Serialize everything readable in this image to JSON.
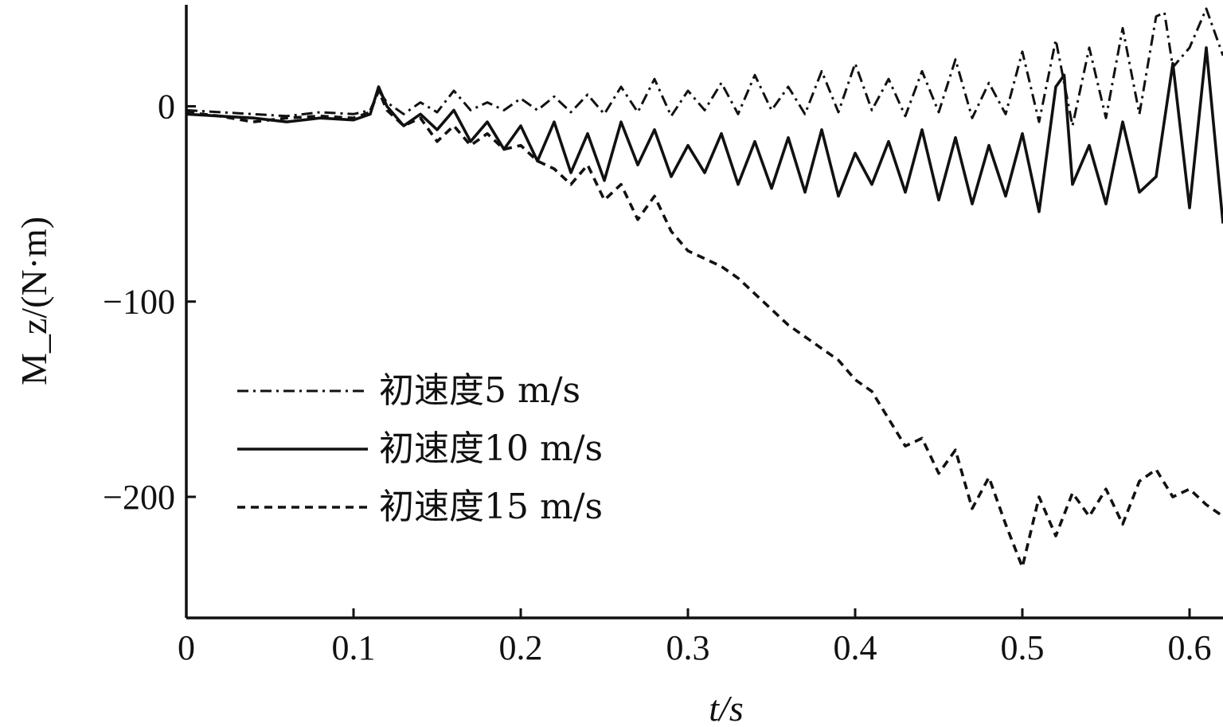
{
  "chart_data": {
    "type": "line",
    "xlabel": "t/s",
    "ylabel": "M_z/(N·m)",
    "xlim": [
      0,
      0.62
    ],
    "ylim": [
      -262,
      52
    ],
    "x_ticks": [
      0,
      0.1,
      0.2,
      0.3,
      0.4,
      0.5,
      0.6
    ],
    "x_tick_labels": [
      "0",
      "0.1",
      "0.2",
      "0.3",
      "0.4",
      "0.5",
      "0.6"
    ],
    "y_ticks": [
      0,
      -100,
      -200
    ],
    "y_tick_labels": [
      "0",
      "−100",
      "−200"
    ],
    "grid": false,
    "legend_position": "lower-left",
    "series": [
      {
        "name": "初速度5 m/s",
        "style": "dashdot",
        "x": [
          0,
          0.02,
          0.04,
          0.06,
          0.08,
          0.1,
          0.11,
          0.115,
          0.12,
          0.13,
          0.14,
          0.15,
          0.16,
          0.17,
          0.18,
          0.19,
          0.2,
          0.21,
          0.22,
          0.23,
          0.24,
          0.25,
          0.26,
          0.27,
          0.28,
          0.29,
          0.3,
          0.31,
          0.32,
          0.33,
          0.34,
          0.35,
          0.36,
          0.37,
          0.38,
          0.39,
          0.4,
          0.41,
          0.42,
          0.43,
          0.44,
          0.45,
          0.46,
          0.47,
          0.48,
          0.49,
          0.5,
          0.51,
          0.52,
          0.53,
          0.54,
          0.55,
          0.56,
          0.57,
          0.58,
          0.585,
          0.59,
          0.6,
          0.61,
          0.62
        ],
        "y": [
          -2,
          -3,
          -4,
          -5,
          -3,
          -4,
          -2,
          8,
          2,
          -4,
          2,
          -3,
          8,
          -2,
          2,
          -2,
          4,
          -2,
          5,
          -3,
          6,
          -4,
          10,
          -3,
          14,
          -5,
          8,
          -2,
          12,
          -4,
          16,
          -2,
          10,
          -4,
          18,
          -3,
          22,
          -2,
          14,
          -5,
          18,
          -3,
          24,
          -6,
          12,
          -4,
          28,
          -8,
          34,
          -10,
          30,
          -6,
          40,
          -4,
          46,
          48,
          20,
          30,
          50,
          26
        ]
      },
      {
        "name": "初速度10 m/s",
        "style": "solid",
        "x": [
          0,
          0.02,
          0.04,
          0.06,
          0.08,
          0.1,
          0.11,
          0.115,
          0.12,
          0.13,
          0.14,
          0.15,
          0.16,
          0.17,
          0.18,
          0.19,
          0.2,
          0.21,
          0.22,
          0.23,
          0.24,
          0.25,
          0.26,
          0.27,
          0.28,
          0.29,
          0.3,
          0.31,
          0.32,
          0.33,
          0.34,
          0.35,
          0.36,
          0.37,
          0.38,
          0.39,
          0.4,
          0.41,
          0.42,
          0.43,
          0.44,
          0.45,
          0.46,
          0.47,
          0.48,
          0.49,
          0.5,
          0.51,
          0.52,
          0.525,
          0.53,
          0.54,
          0.55,
          0.56,
          0.57,
          0.58,
          0.59,
          0.6,
          0.61,
          0.62
        ],
        "y": [
          -4,
          -5,
          -6,
          -8,
          -6,
          -7,
          -4,
          10,
          0,
          -10,
          -4,
          -12,
          -2,
          -18,
          -8,
          -22,
          -10,
          -28,
          -8,
          -34,
          -14,
          -38,
          -8,
          -30,
          -12,
          -36,
          -20,
          -34,
          -14,
          -40,
          -18,
          -42,
          -16,
          -44,
          -12,
          -46,
          -24,
          -40,
          -18,
          -44,
          -12,
          -48,
          -16,
          -50,
          -20,
          -46,
          -14,
          -54,
          10,
          16,
          -40,
          -20,
          -50,
          -8,
          -44,
          -36,
          22,
          -52,
          30,
          -60
        ]
      },
      {
        "name": "初速度15 m/s",
        "style": "dashed",
        "x": [
          0,
          0.02,
          0.04,
          0.06,
          0.08,
          0.1,
          0.11,
          0.115,
          0.12,
          0.13,
          0.14,
          0.15,
          0.16,
          0.17,
          0.18,
          0.19,
          0.2,
          0.21,
          0.22,
          0.23,
          0.24,
          0.25,
          0.26,
          0.27,
          0.28,
          0.29,
          0.3,
          0.31,
          0.32,
          0.33,
          0.34,
          0.35,
          0.36,
          0.37,
          0.38,
          0.39,
          0.4,
          0.41,
          0.42,
          0.43,
          0.44,
          0.45,
          0.46,
          0.47,
          0.48,
          0.49,
          0.5,
          0.51,
          0.52,
          0.53,
          0.54,
          0.55,
          0.56,
          0.57,
          0.58,
          0.59,
          0.6,
          0.61,
          0.62
        ],
        "y": [
          -3,
          -5,
          -8,
          -6,
          -5,
          -6,
          -3,
          8,
          -2,
          -10,
          -6,
          -18,
          -10,
          -20,
          -14,
          -22,
          -20,
          -28,
          -32,
          -40,
          -30,
          -48,
          -40,
          -58,
          -46,
          -64,
          -74,
          -78,
          -82,
          -88,
          -96,
          -104,
          -112,
          -118,
          -124,
          -130,
          -140,
          -146,
          -160,
          -174,
          -170,
          -188,
          -176,
          -206,
          -190,
          -214,
          -236,
          -200,
          -220,
          -198,
          -210,
          -196,
          -214,
          -192,
          -186,
          -200,
          -196,
          -204,
          -210
        ]
      }
    ]
  }
}
